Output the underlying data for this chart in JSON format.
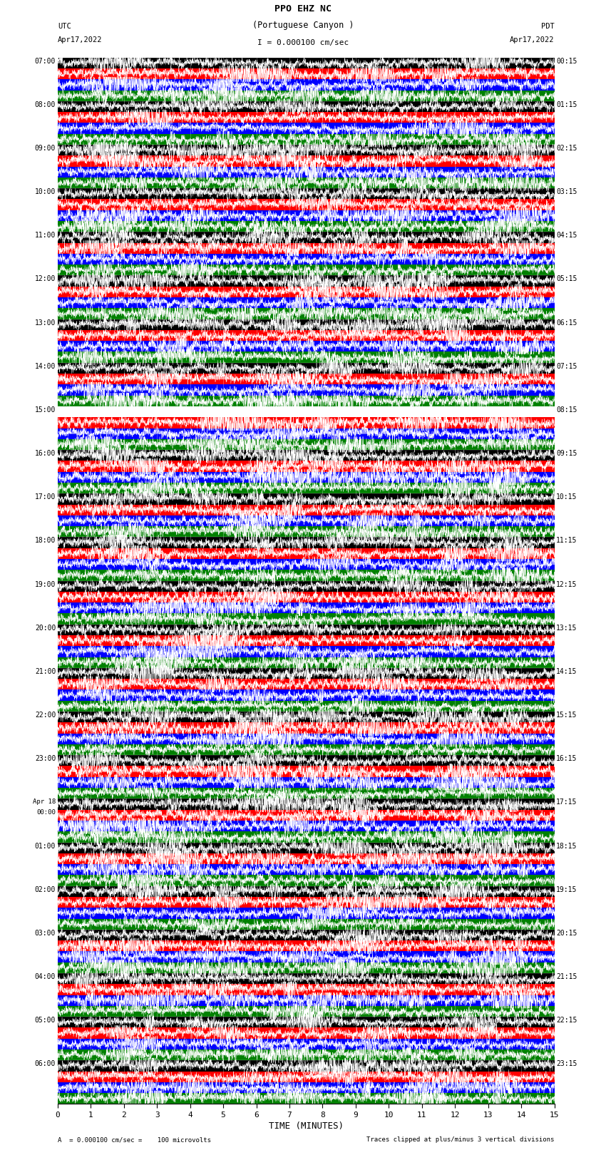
{
  "title_line1": "PPO EHZ NC",
  "title_line2": "(Portuguese Canyon )",
  "title_scale": "I = 0.000100 cm/sec",
  "utc_label": "UTC",
  "utc_date": "Apr17,2022",
  "pdt_label": "PDT",
  "pdt_date": "Apr17,2022",
  "xlabel": "TIME (MINUTES)",
  "footer_left": "A  = 0.000100 cm/sec =    100 microvolts",
  "footer_right": "Traces clipped at plus/minus 3 vertical divisions",
  "left_times": [
    "07:00",
    "08:00",
    "09:00",
    "10:00",
    "11:00",
    "12:00",
    "13:00",
    "14:00",
    "15:00",
    "16:00",
    "17:00",
    "18:00",
    "19:00",
    "20:00",
    "21:00",
    "22:00",
    "23:00",
    "Apr 18\n00:00",
    "01:00",
    "02:00",
    "03:00",
    "04:00",
    "05:00",
    "06:00"
  ],
  "right_times": [
    "00:15",
    "01:15",
    "02:15",
    "03:15",
    "04:15",
    "05:15",
    "06:15",
    "07:15",
    "08:15",
    "09:15",
    "10:15",
    "11:15",
    "12:15",
    "13:15",
    "14:15",
    "15:15",
    "16:15",
    "17:15",
    "18:15",
    "19:15",
    "20:15",
    "21:15",
    "22:15",
    "23:15"
  ],
  "band_colors": [
    "#000000",
    "#ff0000",
    "#0000ff",
    "#008000"
  ],
  "bg_color": "#ffffff",
  "num_rows": 24,
  "bands_per_row": 4,
  "x_ticks": [
    0,
    1,
    2,
    3,
    4,
    5,
    6,
    7,
    8,
    9,
    10,
    11,
    12,
    13,
    14,
    15
  ],
  "plot_bg": "#ffffff"
}
